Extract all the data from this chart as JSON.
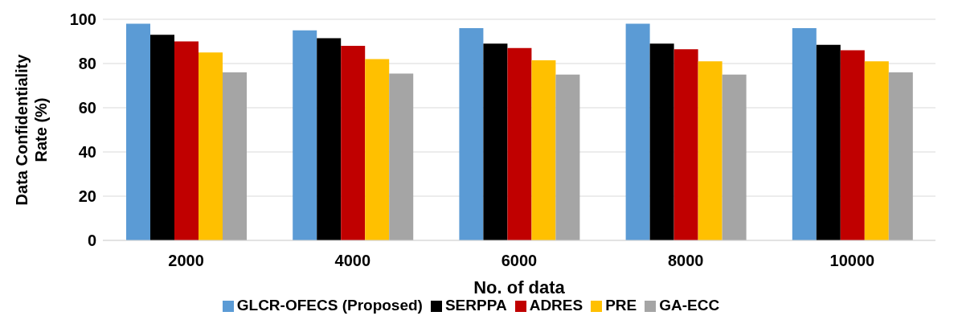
{
  "chart_data": {
    "type": "bar",
    "xlabel": "No. of data",
    "ylabel": "Data Confidentiality Rate (%)",
    "categories": [
      "2000",
      "4000",
      "6000",
      "8000",
      "10000"
    ],
    "series": [
      {
        "name": "GLCR-OFECS (Proposed)",
        "color": "#5b9bd5",
        "values": [
          98,
          95,
          96,
          98,
          96
        ]
      },
      {
        "name": "SERPPA",
        "color": "#000000",
        "values": [
          93,
          91.5,
          89,
          89,
          88.5
        ]
      },
      {
        "name": "ADRES",
        "color": "#c00000",
        "values": [
          90,
          88,
          87,
          86.5,
          86
        ]
      },
      {
        "name": "PRE",
        "color": "#ffc000",
        "values": [
          85,
          82,
          81.5,
          81,
          81
        ]
      },
      {
        "name": "GA-ECC",
        "color": "#a5a5a5",
        "values": [
          76,
          75.5,
          75,
          75,
          76
        ]
      }
    ],
    "ylim": [
      0,
      100
    ],
    "yticks": [
      0,
      20,
      40,
      60,
      80,
      100
    ],
    "grid": "y",
    "legend": "bottom"
  }
}
